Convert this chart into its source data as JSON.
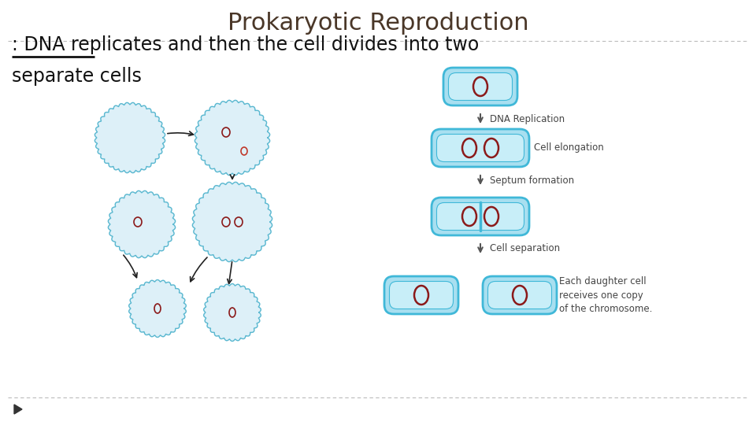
{
  "title": "Prokaryotic Reproduction",
  "title_color": "#4a3728",
  "title_fontsize": 22,
  "body_text_line1": ": DNA replicates and then the cell divides into two",
  "body_text_line2": "separate cells",
  "body_fontsize": 17,
  "body_color": "#111111",
  "background_color": "#ffffff",
  "dashed_line_color": "#bbbbbb",
  "cell_fill_outer": "#a8dff0",
  "cell_fill_inner": "#c8eef8",
  "cell_edge": "#40b8d8",
  "chromosome_color": "#8b1a1a",
  "label_fontsize": 8.5,
  "label_color": "#444444",
  "right_labels": [
    "DNA Replication",
    "Cell elongation",
    "Septum formation",
    "Cell separation"
  ],
  "bottom_note": "Each daughter cell\nreceives one copy\nof the chromosome.",
  "triangle_color": "#333333",
  "circle_fill": "#ddf0f8",
  "circle_edge": "#5ab8d0",
  "arrow_color": "#222222"
}
